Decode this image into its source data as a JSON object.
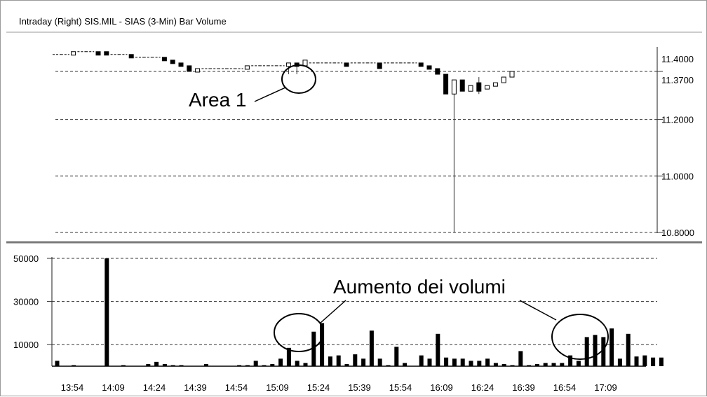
{
  "chart_title": "Intraday (Right) SIS.MIL - SIAS (3-Min) Bar Volume",
  "chart_data": [
    {
      "type": "candlestick",
      "title": "Intraday (Right) SIS.MIL - SIAS (3-Min) Bar Volume",
      "y_ticks": [
        "11.4000",
        "11.3700",
        "11.2000",
        "11.0000",
        "10.8000"
      ],
      "ylim": [
        10.8,
        11.45
      ],
      "last_price": 11.37,
      "grid": true,
      "bars": [
        {
          "o": 11.43,
          "h": 11.43,
          "l": 11.43,
          "c": 11.43,
          "fill": "flat"
        },
        {
          "o": 11.43,
          "h": 11.43,
          "l": 11.43,
          "c": 11.43,
          "fill": "flat"
        },
        {
          "o": 11.43,
          "h": 11.44,
          "l": 11.43,
          "c": 11.44,
          "fill": "hollow"
        },
        {
          "o": 11.44,
          "h": 11.44,
          "l": 11.44,
          "c": 11.44,
          "fill": "flat"
        },
        {
          "o": 11.44,
          "h": 11.44,
          "l": 11.44,
          "c": 11.44,
          "fill": "flat"
        },
        {
          "o": 11.44,
          "h": 11.44,
          "l": 11.43,
          "c": 11.43,
          "fill": "solid"
        },
        {
          "o": 11.44,
          "h": 11.44,
          "l": 11.43,
          "c": 11.43,
          "fill": "solid"
        },
        {
          "o": 11.43,
          "h": 11.43,
          "l": 11.43,
          "c": 11.43,
          "fill": "flat"
        },
        {
          "o": 11.43,
          "h": 11.43,
          "l": 11.43,
          "c": 11.43,
          "fill": "flat"
        },
        {
          "o": 11.43,
          "h": 11.43,
          "l": 11.42,
          "c": 11.42,
          "fill": "solid"
        },
        {
          "o": 11.42,
          "h": 11.42,
          "l": 11.42,
          "c": 11.42,
          "fill": "flat"
        },
        {
          "o": 11.42,
          "h": 11.42,
          "l": 11.42,
          "c": 11.42,
          "fill": "flat"
        },
        {
          "o": 11.42,
          "h": 11.42,
          "l": 11.42,
          "c": 11.42,
          "fill": "flat"
        },
        {
          "o": 11.42,
          "h": 11.42,
          "l": 11.41,
          "c": 11.41,
          "fill": "solid"
        },
        {
          "o": 11.41,
          "h": 11.41,
          "l": 11.4,
          "c": 11.4,
          "fill": "solid"
        },
        {
          "o": 11.4,
          "h": 11.4,
          "l": 11.39,
          "c": 11.39,
          "fill": "solid"
        },
        {
          "o": 11.39,
          "h": 11.39,
          "l": 11.37,
          "c": 11.37,
          "fill": "solid"
        },
        {
          "o": 11.37,
          "h": 11.38,
          "l": 11.37,
          "c": 11.38,
          "fill": "hollow"
        },
        {
          "o": 11.38,
          "h": 11.38,
          "l": 11.38,
          "c": 11.38,
          "fill": "flat"
        },
        {
          "o": 11.38,
          "h": 11.38,
          "l": 11.38,
          "c": 11.38,
          "fill": "flat"
        },
        {
          "o": 11.38,
          "h": 11.38,
          "l": 11.38,
          "c": 11.38,
          "fill": "flat"
        },
        {
          "o": 11.38,
          "h": 11.38,
          "l": 11.38,
          "c": 11.38,
          "fill": "flat"
        },
        {
          "o": 11.38,
          "h": 11.38,
          "l": 11.38,
          "c": 11.38,
          "fill": "flat"
        },
        {
          "o": 11.38,
          "h": 11.39,
          "l": 11.38,
          "c": 11.39,
          "fill": "hollow"
        },
        {
          "o": 11.39,
          "h": 11.39,
          "l": 11.39,
          "c": 11.39,
          "fill": "flat"
        },
        {
          "o": 11.39,
          "h": 11.39,
          "l": 11.39,
          "c": 11.39,
          "fill": "flat"
        },
        {
          "o": 11.39,
          "h": 11.39,
          "l": 11.39,
          "c": 11.39,
          "fill": "flat"
        },
        {
          "o": 11.39,
          "h": 11.39,
          "l": 11.39,
          "c": 11.39,
          "fill": "flat"
        },
        {
          "o": 11.39,
          "h": 11.4,
          "l": 11.36,
          "c": 11.4,
          "fill": "hollow"
        },
        {
          "o": 11.4,
          "h": 11.4,
          "l": 11.36,
          "c": 11.39,
          "fill": "solid"
        },
        {
          "o": 11.39,
          "h": 11.41,
          "l": 11.39,
          "c": 11.41,
          "fill": "hollow"
        },
        {
          "o": 11.4,
          "h": 11.4,
          "l": 11.4,
          "c": 11.4,
          "fill": "flat"
        },
        {
          "o": 11.4,
          "h": 11.4,
          "l": 11.4,
          "c": 11.4,
          "fill": "flat"
        },
        {
          "o": 11.4,
          "h": 11.4,
          "l": 11.4,
          "c": 11.4,
          "fill": "flat"
        },
        {
          "o": 11.4,
          "h": 11.4,
          "l": 11.4,
          "c": 11.4,
          "fill": "flat"
        },
        {
          "o": 11.4,
          "h": 11.4,
          "l": 11.39,
          "c": 11.39,
          "fill": "solid"
        },
        {
          "o": 11.4,
          "h": 11.4,
          "l": 11.4,
          "c": 11.4,
          "fill": "flat"
        },
        {
          "o": 11.4,
          "h": 11.4,
          "l": 11.4,
          "c": 11.4,
          "fill": "flat"
        },
        {
          "o": 11.4,
          "h": 11.4,
          "l": 11.4,
          "c": 11.4,
          "fill": "flat"
        },
        {
          "o": 11.4,
          "h": 11.4,
          "l": 11.38,
          "c": 11.38,
          "fill": "solid"
        },
        {
          "o": 11.4,
          "h": 11.4,
          "l": 11.4,
          "c": 11.4,
          "fill": "flat"
        },
        {
          "o": 11.4,
          "h": 11.4,
          "l": 11.4,
          "c": 11.4,
          "fill": "flat"
        },
        {
          "o": 11.4,
          "h": 11.4,
          "l": 11.4,
          "c": 11.4,
          "fill": "flat"
        },
        {
          "o": 11.4,
          "h": 11.4,
          "l": 11.4,
          "c": 11.4,
          "fill": "flat"
        },
        {
          "o": 11.4,
          "h": 11.4,
          "l": 11.39,
          "c": 11.39,
          "fill": "solid"
        },
        {
          "o": 11.39,
          "h": 11.39,
          "l": 11.38,
          "c": 11.38,
          "fill": "solid"
        },
        {
          "o": 11.38,
          "h": 11.38,
          "l": 11.36,
          "c": 11.36,
          "fill": "solid"
        },
        {
          "o": 11.36,
          "h": 11.36,
          "l": 11.29,
          "c": 11.29,
          "fill": "solid"
        },
        {
          "o": 11.29,
          "h": 11.34,
          "l": 10.8,
          "c": 11.34,
          "fill": "hollow"
        },
        {
          "o": 11.34,
          "h": 11.34,
          "l": 11.3,
          "c": 11.3,
          "fill": "solid"
        },
        {
          "o": 11.3,
          "h": 11.32,
          "l": 11.3,
          "c": 11.32,
          "fill": "hollow"
        },
        {
          "o": 11.33,
          "h": 11.35,
          "l": 11.29,
          "c": 11.3,
          "fill": "solid"
        },
        {
          "o": 11.31,
          "h": 11.32,
          "l": 11.31,
          "c": 11.32,
          "fill": "hollow"
        },
        {
          "o": 11.32,
          "h": 11.33,
          "l": 11.32,
          "c": 11.33,
          "fill": "hollow"
        },
        {
          "o": 11.33,
          "h": 11.35,
          "l": 11.33,
          "c": 11.35,
          "fill": "hollow"
        },
        {
          "o": 11.35,
          "h": 11.37,
          "l": 11.35,
          "c": 11.37,
          "fill": "hollow"
        }
      ],
      "annotations": [
        {
          "text": "Area 1",
          "bars": [
            17,
            18
          ]
        }
      ]
    },
    {
      "type": "bar",
      "title": "",
      "y_ticks": [
        "50000",
        "30000",
        "10000"
      ],
      "ylim": [
        0,
        50000
      ],
      "grid": true,
      "x_ticks": [
        "13:54",
        "14:09",
        "14:24",
        "14:39",
        "14:54",
        "15:09",
        "15:24",
        "15:39",
        "15:54",
        "16:09",
        "16:24",
        "16:39",
        "16:54",
        "17:09"
      ],
      "values": [
        2500,
        0,
        500,
        0,
        0,
        0,
        50000,
        0,
        500,
        0,
        0,
        1000,
        2000,
        1000,
        500,
        500,
        0,
        0,
        1000,
        0,
        0,
        0,
        500,
        500,
        2500,
        500,
        1000,
        3500,
        8500,
        2500,
        1500,
        16000,
        20000,
        4500,
        5000,
        1000,
        5500,
        3500,
        16500,
        3500,
        500,
        9000,
        1500,
        0,
        5000,
        3500,
        15000,
        4000,
        3500,
        3500,
        2500,
        2500,
        3500,
        1500,
        1000,
        500,
        7000,
        500,
        1000,
        1500,
        1500,
        1500,
        5000,
        2500,
        13500,
        14500,
        13500,
        17500,
        3500,
        15000,
        4500,
        5000,
        4000,
        4000
      ],
      "annotations": [
        {
          "text": "Aumento dei volumi"
        }
      ]
    }
  ]
}
